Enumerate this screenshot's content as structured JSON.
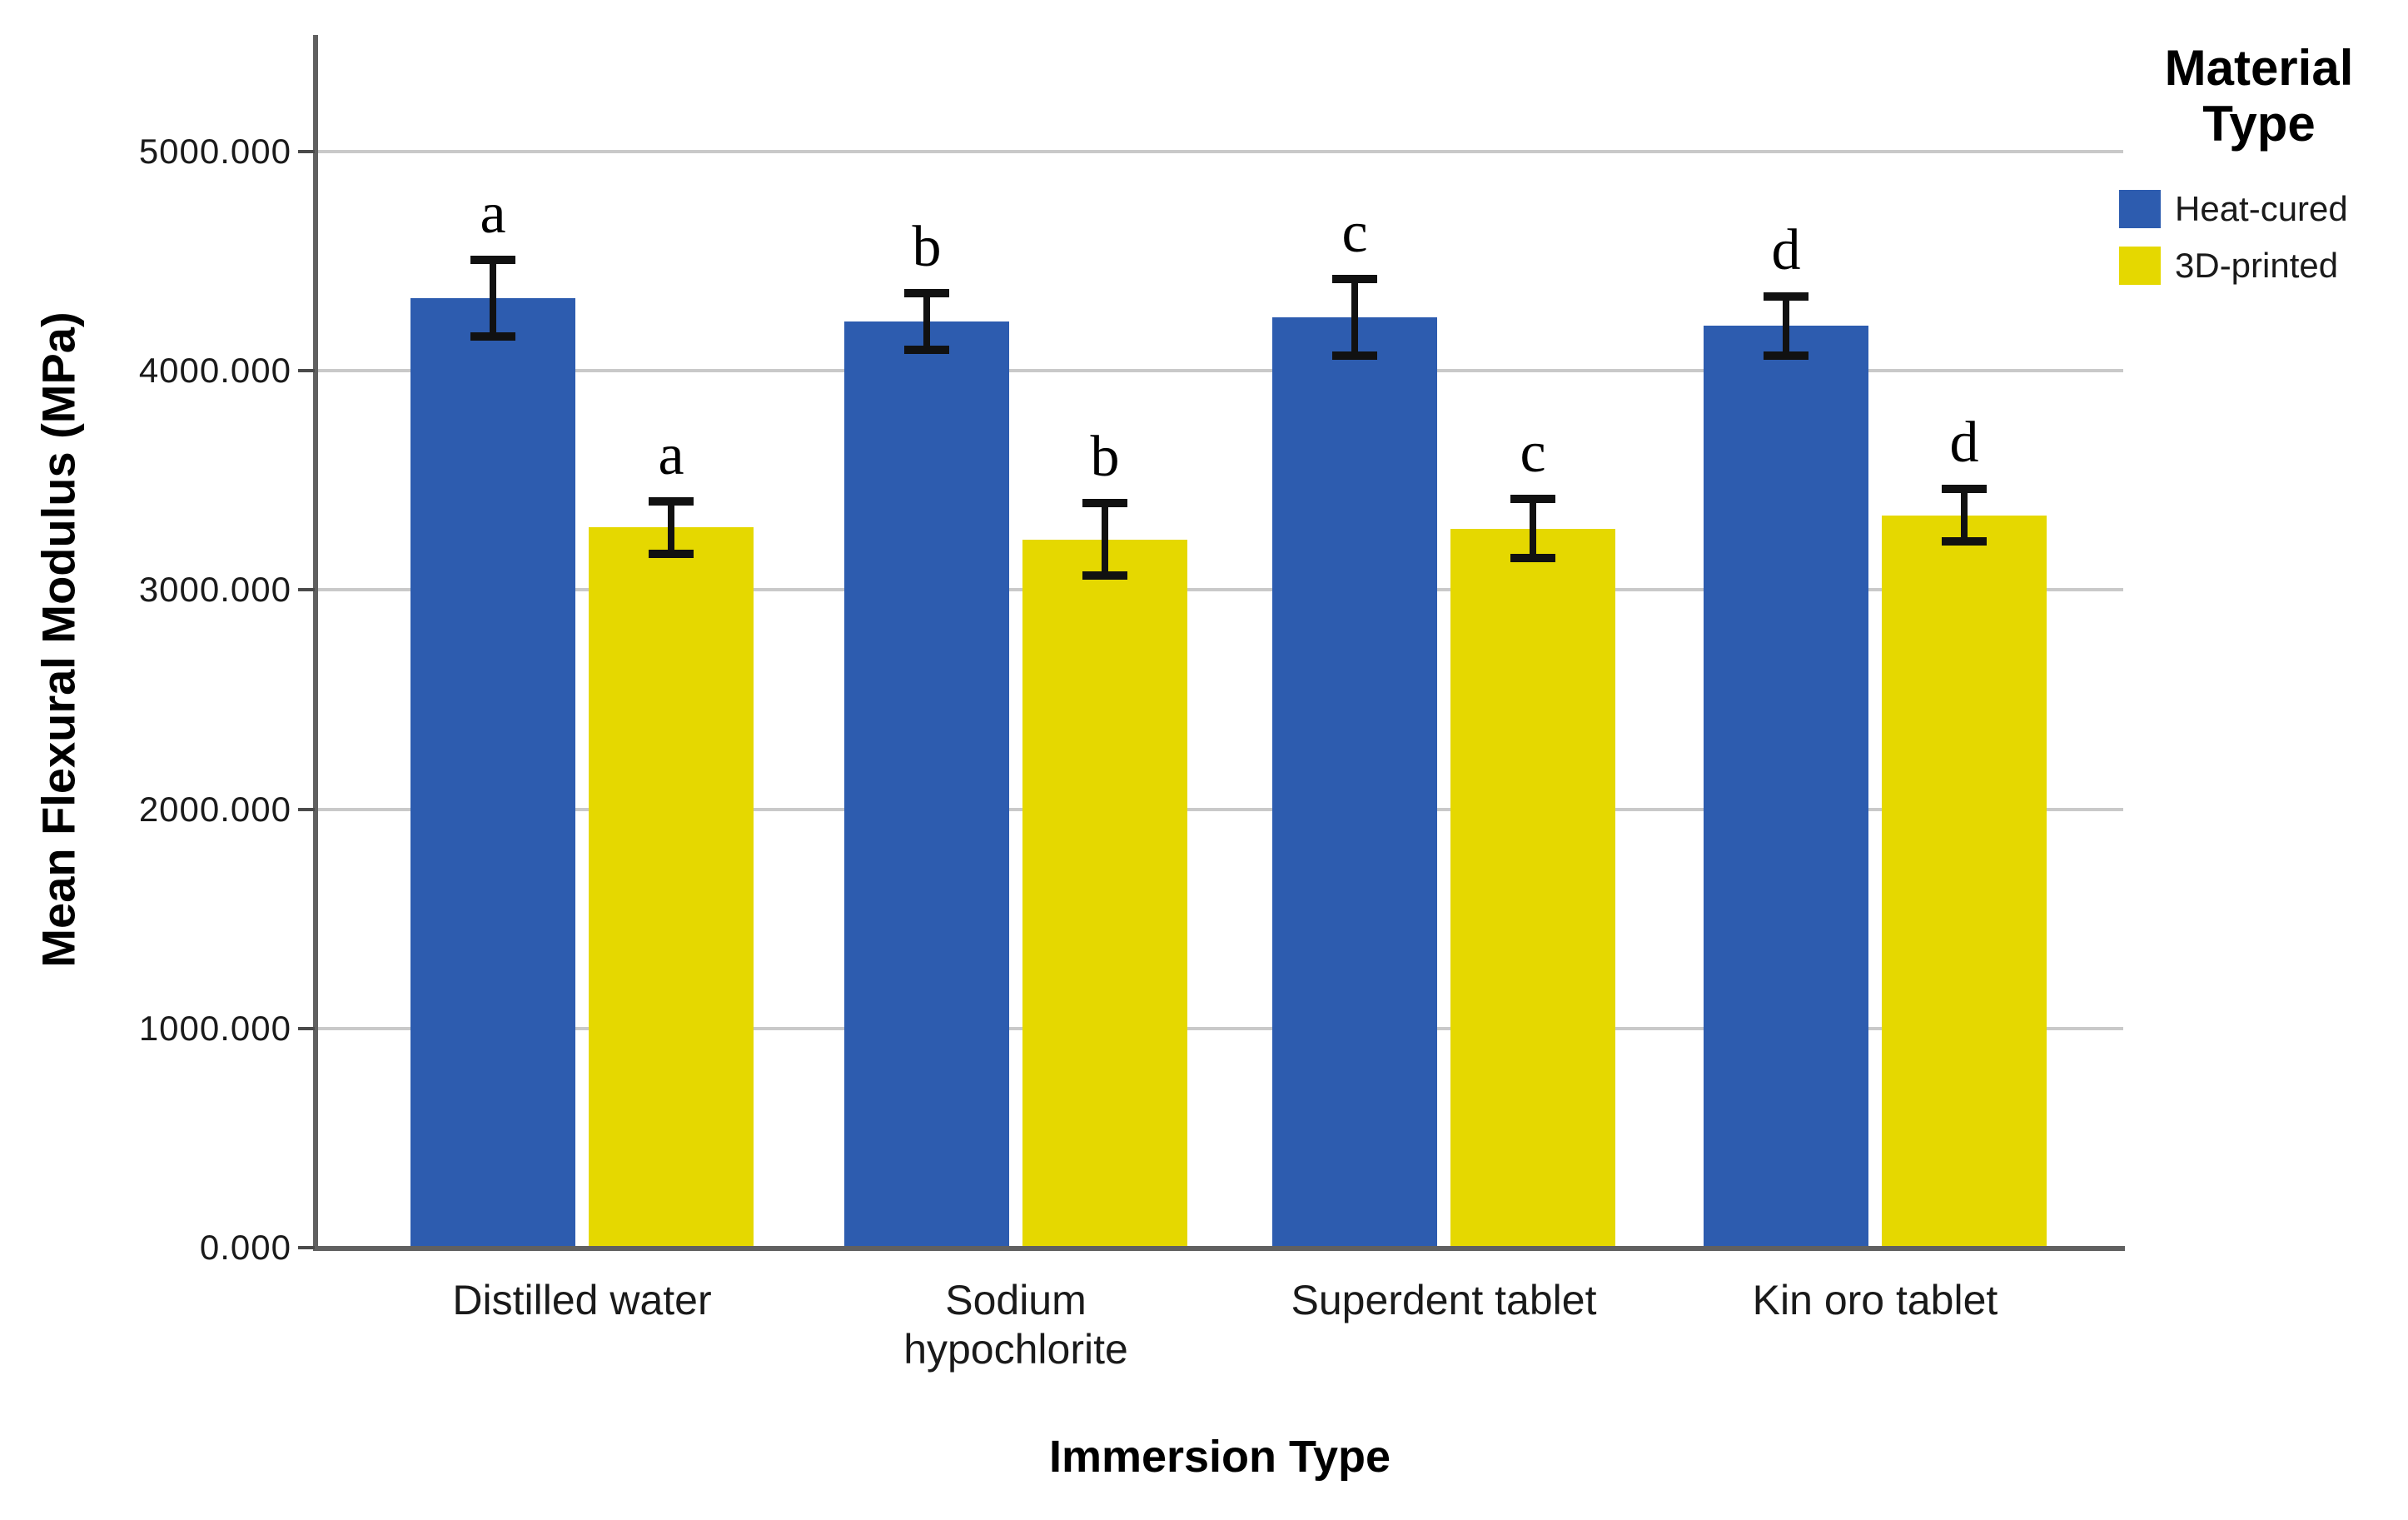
{
  "figure": {
    "background_color": "#ffffff",
    "text_color": "#1a1a1a",
    "gridline_color": "#c9c9c9",
    "axis_line_color": "#606060",
    "error_bar_color": "#111111"
  },
  "chart_data": {
    "type": "bar",
    "title": "",
    "xlabel": "Immersion Type",
    "ylabel": "Mean Flexural Modulus (MPa)",
    "categories": [
      "Distilled water",
      "Sodium hypochlorite",
      "Superdent tablet",
      "Kin oro tablet"
    ],
    "series": [
      {
        "name": "Heat-cured",
        "color": "#2D5CAF",
        "values": [
          4330,
          4225,
          4245,
          4205
        ],
        "errors": [
          175,
          130,
          175,
          135
        ]
      },
      {
        "name": "3D-printed",
        "color": "#E5D800",
        "values": [
          3285,
          3230,
          3280,
          3340
        ],
        "errors": [
          120,
          165,
          135,
          120
        ]
      }
    ],
    "significance_letters": [
      "a",
      "b",
      "c",
      "d"
    ],
    "yticks": [
      {
        "label": "0.000",
        "value": 0
      },
      {
        "label": "1000.000",
        "value": 1000
      },
      {
        "label": "2000.000",
        "value": 2000
      },
      {
        "label": "3000.000",
        "value": 3000
      },
      {
        "label": "4000.000",
        "value": 4000
      },
      {
        "label": "5000.000",
        "value": 5000
      }
    ],
    "ylim": [
      0,
      5530
    ],
    "grid": "horizontal",
    "legend": {
      "title": "Material Type",
      "position": "top-right"
    }
  }
}
